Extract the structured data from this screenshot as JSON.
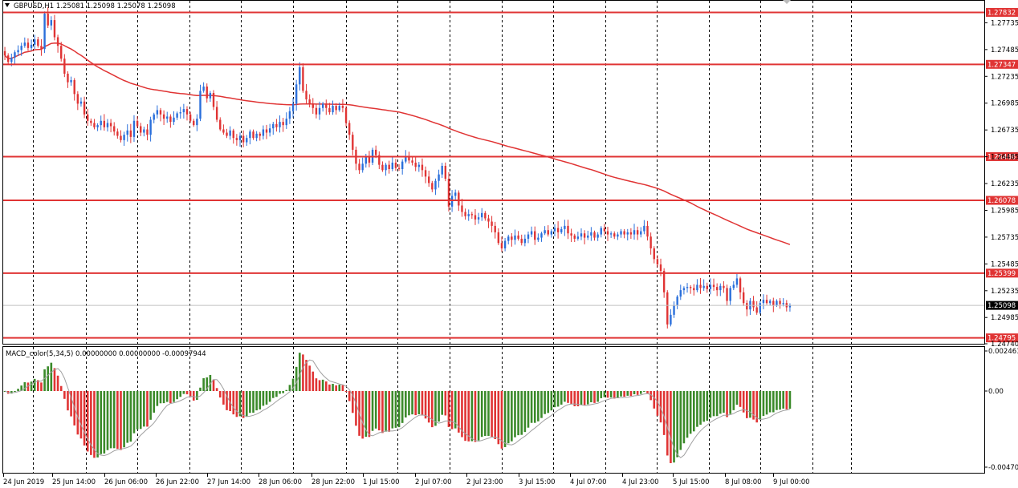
{
  "header": {
    "symbol_info": "GBPUSD,H1  1.25081 1.25098 1.25078 1.25098"
  },
  "macd": {
    "title": "MACD_color(5,34,5) 0.00000000 0.00000000 -0.00097944",
    "axis_top": "0.002461",
    "axis_zero": "0.00",
    "axis_bottom": "-0.004701"
  },
  "price_axis": {
    "ticks": [
      "1.27735",
      "1.27485",
      "1.27235",
      "1.26985",
      "1.26735",
      "1.26485",
      "1.26235",
      "1.25985",
      "1.25735",
      "1.25485",
      "1.25235",
      "1.24985",
      "1.24740"
    ]
  },
  "levels": [
    {
      "value": 1.27832,
      "label": "1.27832"
    },
    {
      "value": 1.27347,
      "label": "1.27347"
    },
    {
      "value": 1.26486,
      "label": "1.26486"
    },
    {
      "value": 1.26078,
      "label": "1.26078"
    },
    {
      "value": 1.25399,
      "label": "1.25399"
    },
    {
      "value": 1.24795,
      "label": "1.24795"
    }
  ],
  "current_price": {
    "value": 1.25098,
    "label": "1.25098"
  },
  "time_axis": [
    "24 Jun 2019",
    "25 Jun 14:00",
    "26 Jun 06:00",
    "26 Jun 22:00",
    "27 Jun 14:00",
    "28 Jun 06:00",
    "28 Jun 22:00",
    "1 Jul 15:00",
    "2 Jul 07:00",
    "2 Jul 23:00",
    "3 Jul 15:00",
    "4 Jul 07:00",
    "4 Jul 23:00",
    "5 Jul 15:00",
    "8 Jul 08:00",
    "9 Jul 00:00"
  ],
  "colors": {
    "bull": "#2a6fdb",
    "bear": "#e03434",
    "level_line": "#e03434",
    "ma_line": "#e03434",
    "macd_up": "#3b8a2a",
    "macd_down": "#e03434",
    "signal": "#a0a0a0"
  },
  "chart_data": {
    "type": "candlestick",
    "symbol": "GBPUSD",
    "timeframe": "H1",
    "price_range": [
      1.2474,
      1.2794
    ],
    "close_series": [
      1.2743,
      1.2737,
      1.2741,
      1.2746,
      1.2748,
      1.2752,
      1.2755,
      1.275,
      1.2753,
      1.2758,
      1.2752,
      1.2749,
      1.2782,
      1.2771,
      1.2776,
      1.276,
      1.2752,
      1.274,
      1.2726,
      1.2718,
      1.272,
      1.2707,
      1.2698,
      1.27,
      1.2688,
      1.2682,
      1.268,
      1.2676,
      1.2678,
      1.2682,
      1.2676,
      1.268,
      1.2677,
      1.2672,
      1.2668,
      1.2664,
      1.2669,
      1.2673,
      1.2667,
      1.2682,
      1.2677,
      1.2671,
      1.2674,
      1.2669,
      1.2683,
      1.2688,
      1.2692,
      1.2688,
      1.2684,
      1.2686,
      1.2681,
      1.2685,
      1.2689,
      1.269,
      1.2693,
      1.2688,
      1.2682,
      1.2678,
      1.2684,
      1.271,
      1.2714,
      1.2703,
      1.2708,
      1.2695,
      1.2683,
      1.2674,
      1.2671,
      1.2668,
      1.2673,
      1.2666,
      1.2664,
      1.2668,
      1.2662,
      1.2666,
      1.2672,
      1.2666,
      1.267,
      1.2668,
      1.2674,
      1.2671,
      1.2675,
      1.2679,
      1.2676,
      1.2681,
      1.2678,
      1.2684,
      1.2691,
      1.2698,
      1.2716,
      1.2732,
      1.271,
      1.2702,
      1.2698,
      1.2694,
      1.2688,
      1.2694,
      1.2698,
      1.2694,
      1.269,
      1.2696,
      1.2692,
      1.2696,
      1.2694,
      1.268,
      1.2669,
      1.2655,
      1.2642,
      1.2636,
      1.2642,
      1.2648,
      1.2643,
      1.2655,
      1.265,
      1.2641,
      1.2636,
      1.2641,
      1.2637,
      1.2643,
      1.2638,
      1.2637,
      1.2644,
      1.2649,
      1.2645,
      1.2643,
      1.2639,
      1.2641,
      1.2636,
      1.263,
      1.2624,
      1.2618,
      1.2626,
      1.2632,
      1.264,
      1.2628,
      1.2602,
      1.2612,
      1.2615,
      1.2603,
      1.2597,
      1.2593,
      1.2595,
      1.2594,
      1.259,
      1.2592,
      1.2596,
      1.2591,
      1.2588,
      1.2584,
      1.2578,
      1.2568,
      1.2563,
      1.257,
      1.2574,
      1.2571,
      1.2575,
      1.2572,
      1.2568,
      1.2572,
      1.2576,
      1.2579,
      1.2571,
      1.2573,
      1.2577,
      1.258,
      1.2576,
      1.2579,
      1.2582,
      1.2578,
      1.2581,
      1.2584,
      1.2577,
      1.2575,
      1.2572,
      1.2574,
      1.2577,
      1.2573,
      1.2575,
      1.2578,
      1.2573,
      1.2576,
      1.2582,
      1.2579,
      1.2576,
      1.2577,
      1.2574,
      1.2576,
      1.2579,
      1.2576,
      1.2578,
      1.2576,
      1.258,
      1.2576,
      1.2579,
      1.2584,
      1.2574,
      1.2563,
      1.2553,
      1.2548,
      1.2542,
      1.2522,
      1.2492,
      1.2501,
      1.251,
      1.2518,
      1.2524,
      1.2526,
      1.2527,
      1.2526,
      1.2524,
      1.2529,
      1.2526,
      1.2528,
      1.2525,
      1.2529,
      1.2527,
      1.2524,
      1.2528,
      1.2526,
      1.2514,
      1.2526,
      1.2529,
      1.2535,
      1.2522,
      1.2512,
      1.2506,
      1.2514,
      1.2508,
      1.2503,
      1.2512,
      1.2515,
      1.2512,
      1.2514,
      1.251,
      1.2514,
      1.2511,
      1.2512,
      1.2508,
      1.25098
    ],
    "moving_average": {
      "type": "line",
      "color": "#e03434"
    },
    "macd": {
      "params": "5,34,5",
      "value": 0.0,
      "signal": 0.0,
      "histogram": -0.00097944,
      "range": [
        -0.004701,
        0.002461
      ]
    }
  }
}
